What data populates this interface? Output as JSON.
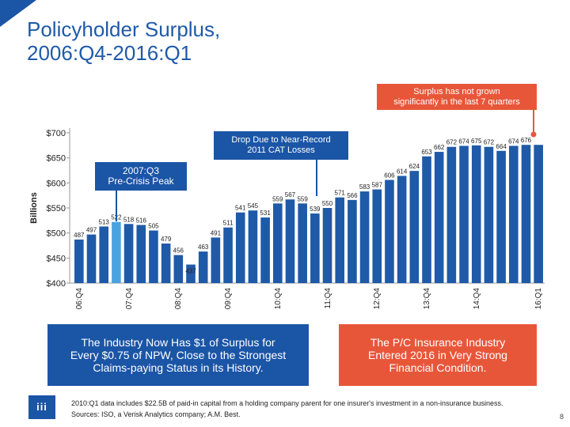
{
  "title": {
    "line1": "Policyholder Surplus,",
    "line2": "2006:Q4-2016:Q1"
  },
  "callouts": {
    "warning": {
      "line1": "Surplus has not grown",
      "line2": "significantly in the last 7 quarters",
      "color": "#e8563a"
    },
    "cat_losses": {
      "line1": "Drop Due to Near-Record",
      "line2": "2011 CAT Losses",
      "color": "#1b55a6"
    },
    "peak": {
      "line1": "2007:Q3",
      "line2": "Pre-Crisis Peak",
      "color": "#1b55a6"
    }
  },
  "chart_data": {
    "type": "bar",
    "ylabel": "Billions",
    "ylim": [
      400,
      700
    ],
    "yticks": [
      400,
      450,
      500,
      550,
      600,
      650,
      700
    ],
    "ytick_labels": [
      "$400",
      "$450",
      "$500",
      "$550",
      "$600",
      "$650",
      "$700"
    ],
    "x_tick_labels": [
      "06:Q4",
      "07:Q4",
      "08:Q4",
      "09:Q4",
      "10:Q4",
      "11:Q4",
      "12:Q4",
      "13:Q4",
      "14:Q4",
      "16:Q1"
    ],
    "x_tick_bar_index": [
      0,
      4,
      8,
      12,
      16,
      20,
      24,
      28,
      32,
      37
    ],
    "bar_color": "#1f5aa8",
    "highlight_color": "#4aa3e0",
    "highlight_index": 3,
    "values": [
      487,
      497,
      513,
      522,
      518,
      516,
      505,
      479,
      456,
      437,
      463,
      491,
      511,
      541,
      545,
      531,
      559,
      567,
      559,
      539,
      550,
      571,
      566,
      583,
      587,
      606,
      614,
      624,
      653,
      662,
      672,
      674,
      675,
      672,
      664,
      674,
      676,
      676
    ],
    "value_labels": [
      "487",
      "497",
      "513",
      "522",
      "518",
      "516",
      "505",
      "479",
      "456",
      "437",
      "463",
      "491",
      "511",
      "541",
      "545",
      "531",
      "559",
      "567",
      "559",
      "539",
      "550",
      "571",
      "566",
      "583",
      "587",
      "606",
      "614",
      "624",
      "653",
      "662",
      "672",
      "674",
      "675",
      "672",
      "664",
      "674",
      "676",
      ""
    ]
  },
  "panels": {
    "left": {
      "line1": "The Industry Now Has $1 of Surplus for",
      "line2": "Every $0.75 of NPW, Close to the Strongest",
      "line3": "Claims-paying Status in its History.",
      "color": "#1b55a6"
    },
    "right": {
      "line1": "The P/C Insurance Industry",
      "line2": "Entered 2016 in Very Strong",
      "line3": "Financial Condition.",
      "color": "#e8563a"
    }
  },
  "logo_text": "iii",
  "footnote": {
    "line1": "2010:Q1 data includes $22.5B of paid-in capital from a holding company parent for one insurer's investment in a non-insurance business.",
    "line2": "Sources: ISO, a Verisk Analytics company; A.M. Best."
  },
  "page_number": "8"
}
